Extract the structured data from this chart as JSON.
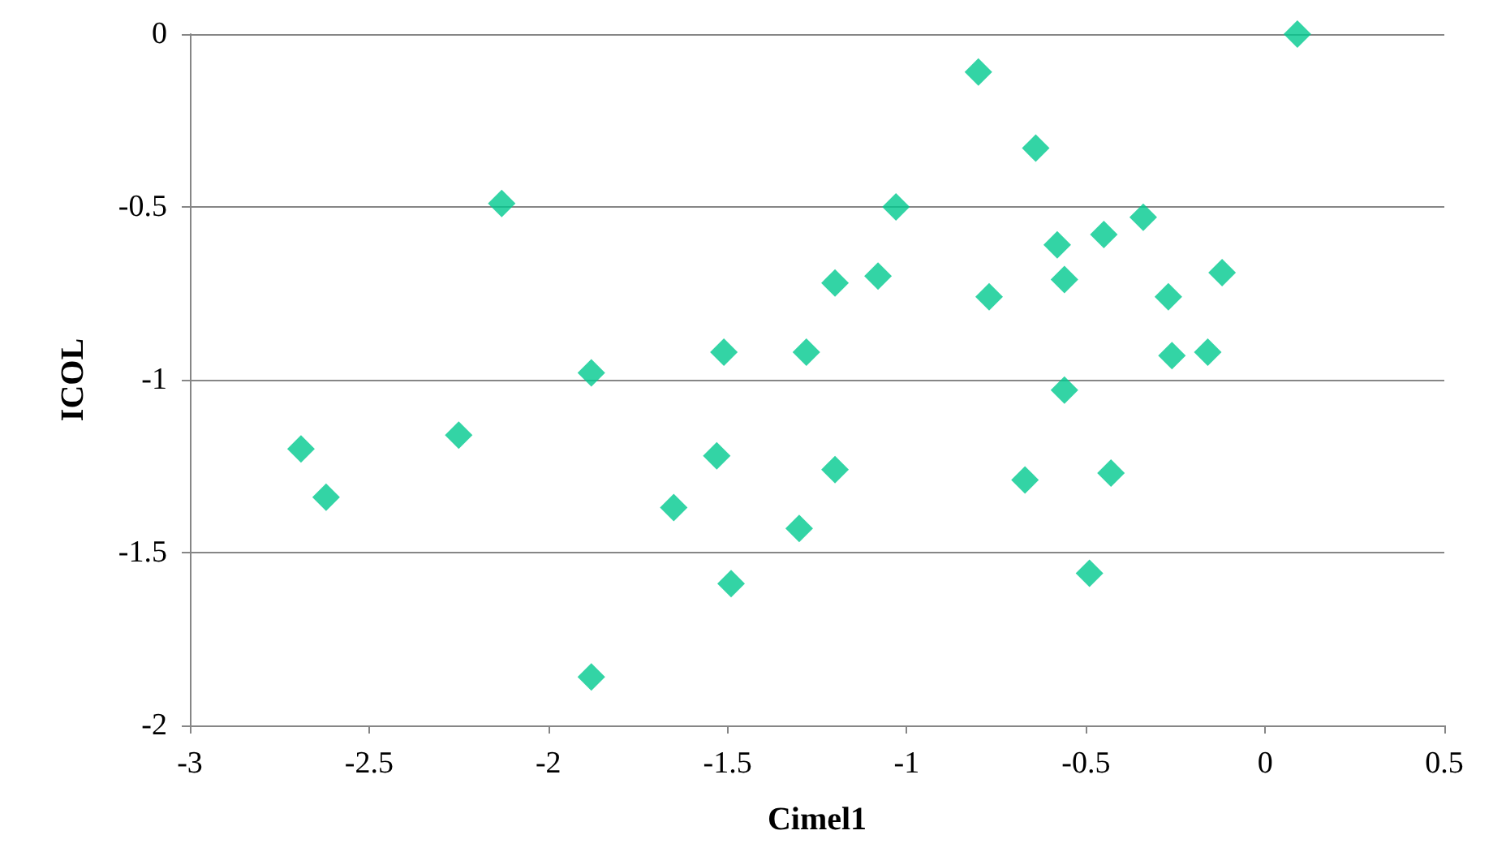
{
  "chart_data": {
    "type": "scatter",
    "xlabel": "Cimel1",
    "ylabel": "ICOL",
    "marker": "diamond",
    "grid": "y",
    "xlim": [
      -3,
      0.5
    ],
    "xticks": [
      -3,
      -2.5,
      -2,
      -1.5,
      -1,
      -0.5,
      0,
      0.5
    ],
    "ylim": [
      -2,
      0
    ],
    "yticks": [
      -2,
      -1.5,
      -1,
      -0.5,
      0
    ],
    "series": [
      {
        "color": "#00c98f",
        "x": [
          0.09,
          -0.8,
          -0.64,
          -2.13,
          -1.03,
          -0.34,
          -0.45,
          -0.58,
          -1.08,
          -1.2,
          -0.56,
          -0.12,
          -0.77,
          -0.27,
          -1.51,
          -1.28,
          -0.26,
          -0.16,
          -1.88,
          -0.56,
          -2.69,
          -2.25,
          -1.53,
          -2.62,
          -1.2,
          -0.67,
          -0.43,
          -1.65,
          -1.3,
          -1.49,
          -0.49,
          -1.88
        ],
        "values": [
          0,
          -0.11,
          -0.33,
          -0.49,
          -0.5,
          -0.53,
          -0.58,
          -0.61,
          -0.7,
          -0.72,
          -0.71,
          -0.69,
          -0.76,
          -0.76,
          -0.92,
          -0.92,
          -0.93,
          -0.92,
          -0.98,
          -1.03,
          -1.2,
          -1.16,
          -1.22,
          -1.34,
          -1.26,
          -1.29,
          -1.27,
          -1.37,
          -1.43,
          -1.59,
          -1.56,
          -1.86
        ]
      }
    ]
  }
}
